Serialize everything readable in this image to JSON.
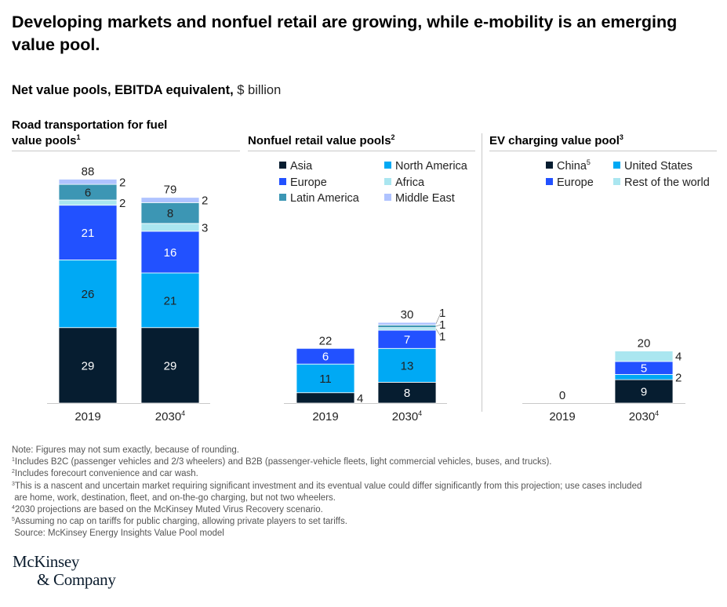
{
  "title": "Developing markets and nonfuel retail are growing, while e-mobility is an emerging value pool.",
  "subtitle": {
    "bold": "Net value pools, EBITDA equivalent,",
    "unit": "$ billion"
  },
  "colors": {
    "Asia": "#061d30",
    "North America": "#00a9f4",
    "Europe": "#2251ff",
    "Africa": "#aae6f0",
    "Latin America": "#3c96b4",
    "Middle East": "#afc3ff",
    "China": "#061d30",
    "United States": "#00a9f4",
    "Rest of the world": "#aae6f0"
  },
  "panels": [
    {
      "title": "Road transportation for fuel value pools",
      "title_line1": "Road transportation for fuel",
      "title_line2": "value pools",
      "footnote": "1"
    },
    {
      "title": "Nonfuel retail value pools",
      "footnote": "2",
      "legend": [
        {
          "label": "Asia",
          "key": "Asia"
        },
        {
          "label": "North America",
          "key": "North America"
        },
        {
          "label": "Europe",
          "key": "Europe"
        },
        {
          "label": "Africa",
          "key": "Africa"
        },
        {
          "label": "Latin America",
          "key": "Latin America"
        },
        {
          "label": "Middle East",
          "key": "Middle East"
        }
      ]
    },
    {
      "title": "EV charging value pool",
      "footnote": "3",
      "legend": [
        {
          "label": "China",
          "sup": "5",
          "key": "China"
        },
        {
          "label": "United States",
          "key": "United States"
        },
        {
          "label": "Europe",
          "key": "Europe"
        },
        {
          "label": "Rest of the world",
          "key": "Rest of the world"
        }
      ]
    }
  ],
  "chart_data": [
    {
      "type": "bar",
      "stacked": true,
      "title": "Road transportation for fuel value pools",
      "categories": [
        "2019",
        "2030"
      ],
      "category_footnotes": [
        "",
        "4"
      ],
      "series": [
        {
          "name": "Asia",
          "values": [
            29,
            29
          ]
        },
        {
          "name": "North America",
          "values": [
            26,
            21
          ]
        },
        {
          "name": "Europe",
          "values": [
            21,
            16
          ]
        },
        {
          "name": "Africa",
          "values": [
            2,
            3
          ]
        },
        {
          "name": "Latin America",
          "values": [
            6,
            8
          ]
        },
        {
          "name": "Middle East",
          "values": [
            2,
            2
          ]
        }
      ],
      "totals": [
        88,
        79
      ],
      "unit": "$ billion"
    },
    {
      "type": "bar",
      "stacked": true,
      "title": "Nonfuel retail value pools",
      "categories": [
        "2019",
        "2030"
      ],
      "category_footnotes": [
        "",
        "4"
      ],
      "series": [
        {
          "name": "Asia",
          "values": [
            4,
            8
          ]
        },
        {
          "name": "North America",
          "values": [
            11,
            13
          ]
        },
        {
          "name": "Europe",
          "values": [
            6,
            7
          ]
        },
        {
          "name": "Africa",
          "values": [
            0,
            1
          ]
        },
        {
          "name": "Latin America",
          "values": [
            0,
            1
          ]
        },
        {
          "name": "Middle East",
          "values": [
            0,
            1
          ]
        }
      ],
      "totals": [
        22,
        30
      ],
      "unit": "$ billion"
    },
    {
      "type": "bar",
      "stacked": true,
      "title": "EV charging value pool",
      "categories": [
        "2019",
        "2030"
      ],
      "category_footnotes": [
        "",
        "4"
      ],
      "series": [
        {
          "name": "China",
          "values": [
            0,
            9
          ]
        },
        {
          "name": "United States",
          "values": [
            0,
            2
          ]
        },
        {
          "name": "Europe",
          "values": [
            0,
            5
          ]
        },
        {
          "name": "Rest of the world",
          "values": [
            0,
            4
          ]
        }
      ],
      "totals": [
        0,
        20
      ],
      "unit": "$ billion"
    }
  ],
  "notes": [
    {
      "sup": "",
      "text": "Note: Figures may not sum exactly, because of rounding."
    },
    {
      "sup": "1",
      "text": "Includes B2C (passenger vehicles and 2/3 wheelers) and B2B (passenger-vehicle fleets, light commercial vehicles, buses, and trucks)."
    },
    {
      "sup": "2",
      "text": "Includes forecourt convenience and car wash."
    },
    {
      "sup": "3",
      "text": "This is a nascent and uncertain market requiring significant investment and its eventual value could differ significantly from this projection; use cases included"
    },
    {
      "sup": "",
      "text": " are home, work, destination, fleet, and on-the-go charging, but not two wheelers."
    },
    {
      "sup": "4",
      "text": "2030 projections are based on the McKinsey Muted Virus Recovery scenario."
    },
    {
      "sup": "5",
      "text": "Assuming no cap on tariffs for public charging, allowing private players to set tariffs."
    },
    {
      "sup": "",
      "text": " Source: McKinsey Energy Insights Value Pool model"
    }
  ],
  "logo": {
    "line1": "McKinsey",
    "line2": "& Company"
  }
}
